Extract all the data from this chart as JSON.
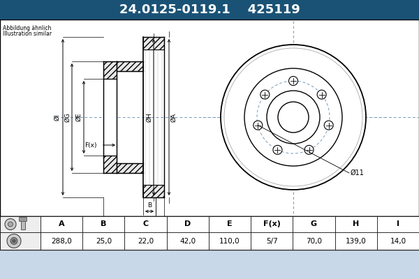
{
  "title_part": "24.0125-0119.1",
  "title_code": "425119",
  "title_bg": "#1a5276",
  "title_fg": "#ffffff",
  "note_line1": "Abbildung ähnlich",
  "note_line2": "Illustration similar",
  "page_bg": "#c8d8e8",
  "diagram_bg": "#ffffff",
  "table_headers": [
    "A",
    "B",
    "C",
    "D",
    "E",
    "F(x)",
    "G",
    "H",
    "I"
  ],
  "table_values": [
    "288,0",
    "25,0",
    "22,0",
    "42,0",
    "110,0",
    "5/7",
    "70,0",
    "139,0",
    "14,0"
  ],
  "label_phi11": "Ø11",
  "hatch_color": "#555555",
  "dim_color": "#000000",
  "line_color": "#000000",
  "crosshair_color": "#7799bb"
}
